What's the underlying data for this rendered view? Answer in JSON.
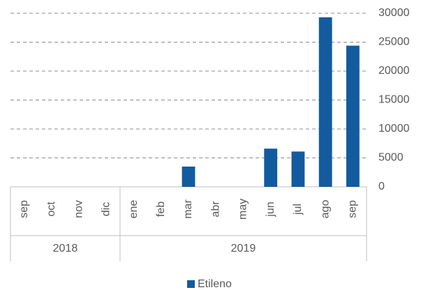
{
  "chart_data": {
    "type": "bar",
    "categories": [
      "sep",
      "oct",
      "nov",
      "dic",
      "ene",
      "feb",
      "mar",
      "abr",
      "may",
      "jun",
      "jul",
      "ago",
      "sep"
    ],
    "category_groups": [
      {
        "label": "2018",
        "size": 4
      },
      {
        "label": "2019",
        "size": 9
      }
    ],
    "series": [
      {
        "name": "Etileno",
        "color": "#125b9e",
        "values": [
          0,
          0,
          0,
          0,
          0,
          0,
          3500,
          0,
          0,
          6600,
          6100,
          29300,
          24400
        ]
      }
    ],
    "ylim": [
      0,
      30000
    ],
    "yticks": [
      0,
      5000,
      10000,
      15000,
      20000,
      25000,
      30000
    ],
    "y_axis_side": "right",
    "grid": true,
    "legend": "bottom"
  }
}
